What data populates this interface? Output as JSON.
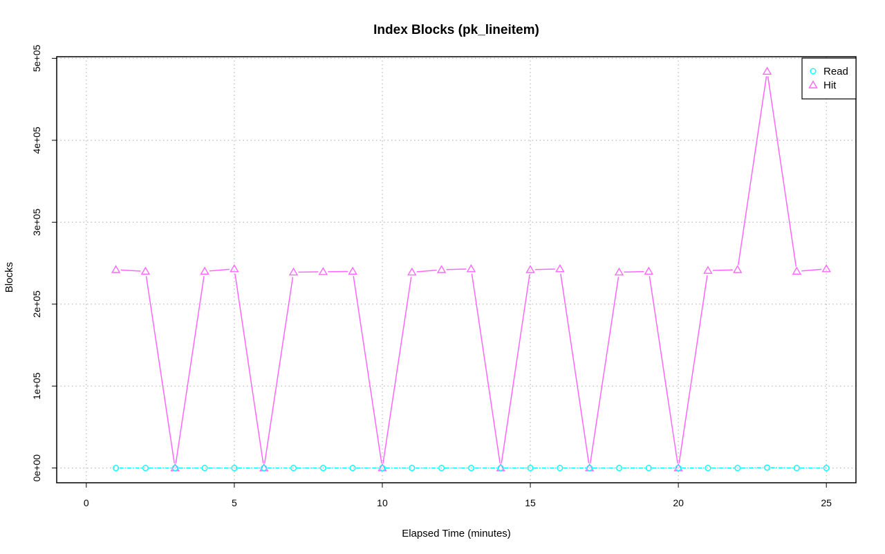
{
  "chart_data": {
    "type": "line",
    "title": "Index Blocks (pk_lineitem)",
    "xlabel": "Elapsed Time (minutes)",
    "ylabel": "Blocks",
    "xlim": [
      -1,
      26
    ],
    "ylim": [
      -18000,
      502000
    ],
    "x_ticks": [
      0,
      5,
      10,
      15,
      20,
      25
    ],
    "x_tick_labels": [
      "0",
      "5",
      "10",
      "15",
      "20",
      "25"
    ],
    "y_ticks": [
      0,
      100000,
      200000,
      300000,
      400000,
      500000
    ],
    "y_tick_labels": [
      "0e+00",
      "1e+05",
      "2e+05",
      "3e+05",
      "4e+05",
      "5e+05"
    ],
    "grid": true,
    "legend_position": "top-right",
    "x": [
      1,
      2,
      3,
      4,
      5,
      6,
      7,
      8,
      9,
      10,
      11,
      12,
      13,
      14,
      15,
      16,
      17,
      18,
      19,
      20,
      21,
      22,
      23,
      24,
      25
    ],
    "series": [
      {
        "name": "Read",
        "color": "#00ffff",
        "marker": "circle",
        "values": [
          0,
          0,
          0,
          0,
          0,
          0,
          0,
          0,
          0,
          0,
          0,
          0,
          0,
          0,
          0,
          0,
          0,
          0,
          0,
          0,
          0,
          0,
          500,
          0,
          0
        ]
      },
      {
        "name": "Hit",
        "color": "#ff66ff",
        "marker": "triangle",
        "values": [
          242000,
          240000,
          0,
          240000,
          243000,
          0,
          239000,
          239500,
          240000,
          0,
          239000,
          242000,
          243000,
          0,
          242000,
          243000,
          0,
          239000,
          240000,
          0,
          241000,
          242000,
          484000,
          240000,
          243000
        ]
      }
    ]
  }
}
